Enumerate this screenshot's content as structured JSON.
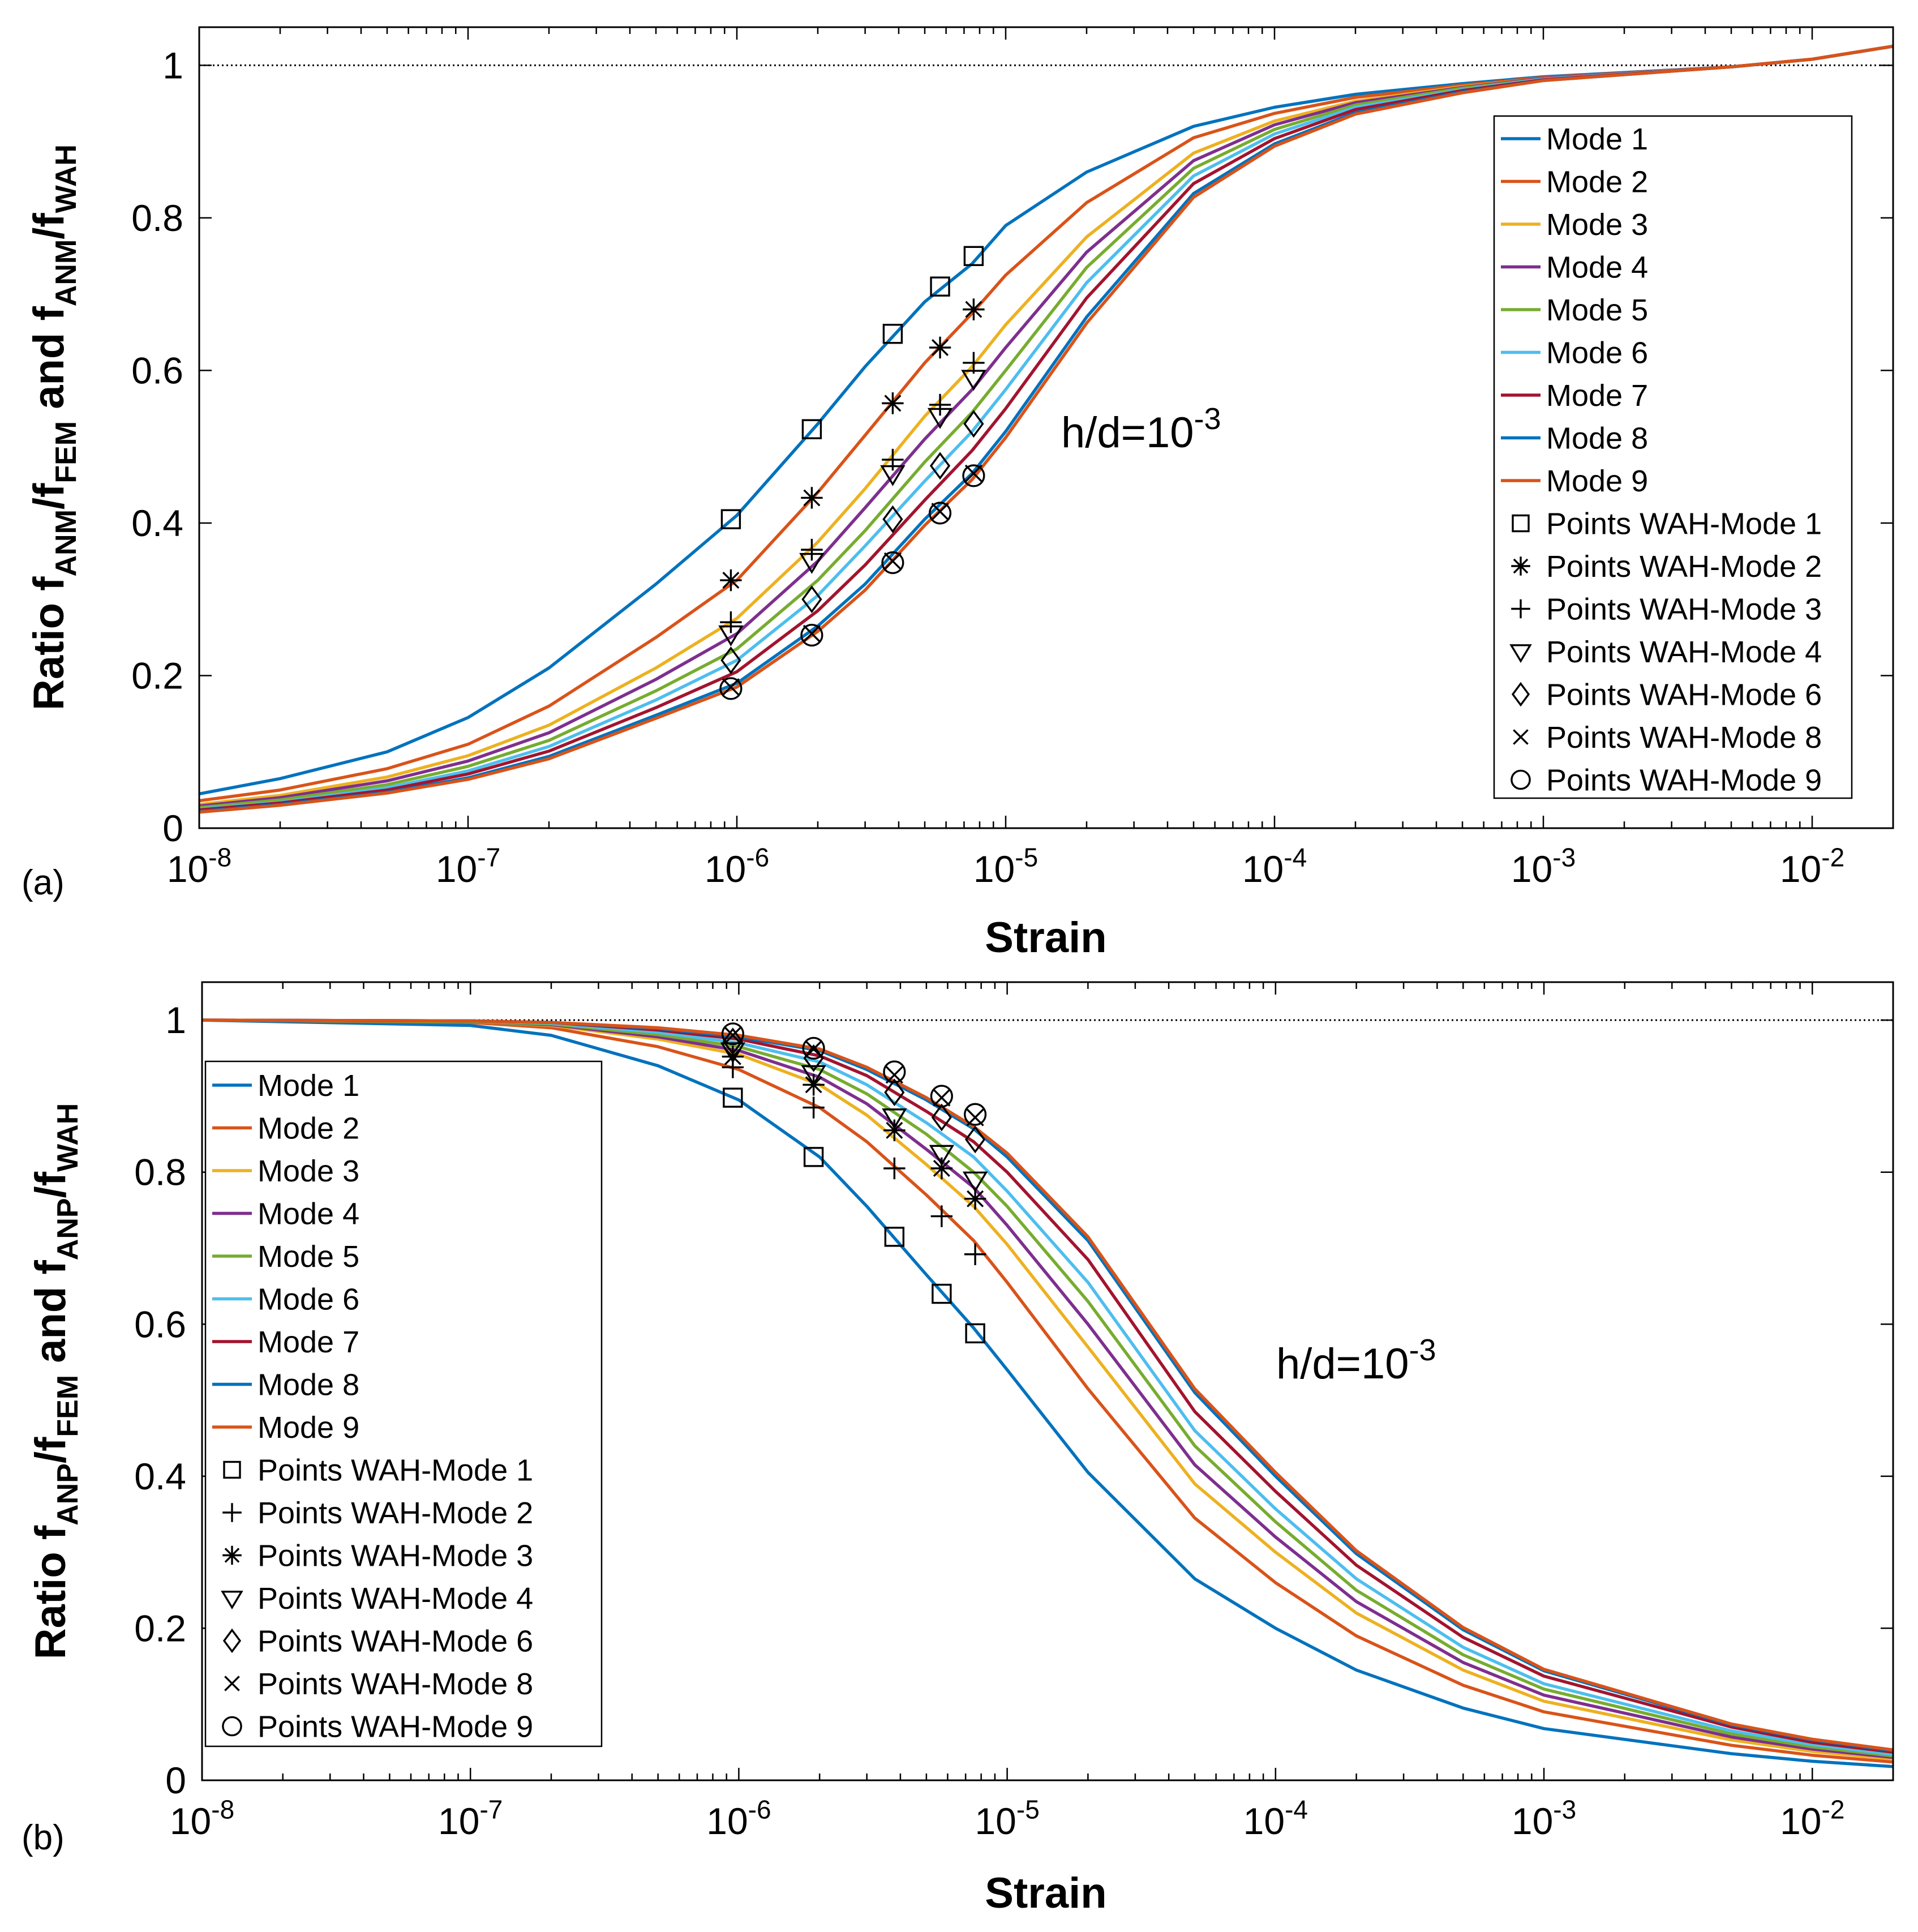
{
  "chart_data": [
    {
      "type": "line",
      "panel_label": "(a)",
      "xlabel": "Strain",
      "ylabel": {
        "base": "Ratio f",
        "s1": "ANM",
        "mid1": "/f",
        "s2": "FEM",
        "mid2": " and f",
        "s3": "ANM",
        "mid3": "/f",
        "s4": "WAH"
      },
      "xscale": "log",
      "xlim": [
        1e-08,
        0.02
      ],
      "ylim": [
        0,
        1.05
      ],
      "x_ticks": [
        {
          "base": "10",
          "exp": "-8"
        },
        {
          "base": "10",
          "exp": "-7"
        },
        {
          "base": "10",
          "exp": "-6"
        },
        {
          "base": "10",
          "exp": "-5"
        },
        {
          "base": "10",
          "exp": "-4"
        },
        {
          "base": "10",
          "exp": "-3"
        },
        {
          "base": "10",
          "exp": "-2"
        }
      ],
      "y_ticks": [
        "0",
        "0.2",
        "0.4",
        "0.6",
        "0.8",
        "1"
      ],
      "annotation": {
        "base": "h/d=10",
        "exp": "-3"
      },
      "reference_line": 1,
      "x": [
        1e-08,
        2e-08,
        5e-08,
        1e-07,
        2e-07,
        5e-07,
        1e-06,
        2e-06,
        3e-06,
        5e-06,
        7.5e-06,
        1e-05,
        2e-05,
        5e-05,
        0.0001,
        0.0002,
        0.0005,
        0.001,
        0.005,
        0.01,
        0.02
      ],
      "series": [
        {
          "name": "Mode 1",
          "color": "#0072BD",
          "values": [
            0.045,
            0.065,
            0.1,
            0.145,
            0.21,
            0.32,
            0.41,
            0.53,
            0.605,
            0.69,
            0.74,
            0.79,
            0.86,
            0.92,
            0.945,
            0.962,
            0.976,
            0.985,
            0.998,
            1.008,
            1.025
          ]
        },
        {
          "name": "Mode 2",
          "color": "#D95319",
          "values": [
            0.036,
            0.05,
            0.078,
            0.11,
            0.16,
            0.25,
            0.325,
            0.44,
            0.515,
            0.61,
            0.675,
            0.725,
            0.82,
            0.905,
            0.937,
            0.958,
            0.974,
            0.984,
            0.998,
            1.008,
            1.025
          ]
        },
        {
          "name": "Mode 3",
          "color": "#EDB120",
          "values": [
            0.031,
            0.043,
            0.067,
            0.095,
            0.135,
            0.21,
            0.275,
            0.375,
            0.445,
            0.54,
            0.605,
            0.66,
            0.775,
            0.885,
            0.927,
            0.953,
            0.972,
            0.983,
            0.998,
            1.008,
            1.025
          ]
        },
        {
          "name": "Mode 4",
          "color": "#7E2F8E",
          "values": [
            0.029,
            0.04,
            0.062,
            0.088,
            0.125,
            0.195,
            0.255,
            0.35,
            0.42,
            0.51,
            0.575,
            0.63,
            0.755,
            0.875,
            0.922,
            0.951,
            0.971,
            0.983,
            0.998,
            1.008,
            1.025
          ]
        },
        {
          "name": "Mode 5",
          "color": "#77AC30",
          "values": [
            0.027,
            0.037,
            0.057,
            0.081,
            0.115,
            0.18,
            0.235,
            0.325,
            0.39,
            0.48,
            0.545,
            0.6,
            0.735,
            0.865,
            0.916,
            0.948,
            0.97,
            0.982,
            0.998,
            1.008,
            1.025
          ]
        },
        {
          "name": "Mode 6",
          "color": "#4DBEEE",
          "values": [
            0.025,
            0.034,
            0.053,
            0.075,
            0.107,
            0.168,
            0.22,
            0.305,
            0.37,
            0.455,
            0.52,
            0.575,
            0.715,
            0.855,
            0.91,
            0.945,
            0.968,
            0.982,
            0.998,
            1.008,
            1.025
          ]
        },
        {
          "name": "Mode 7",
          "color": "#A2142F",
          "values": [
            0.024,
            0.033,
            0.05,
            0.071,
            0.101,
            0.158,
            0.205,
            0.285,
            0.345,
            0.43,
            0.495,
            0.55,
            0.695,
            0.845,
            0.904,
            0.942,
            0.967,
            0.981,
            0.998,
            1.008,
            1.025
          ]
        },
        {
          "name": "Mode 8",
          "color": "#0072BD",
          "values": [
            0.022,
            0.031,
            0.047,
            0.066,
            0.094,
            0.148,
            0.19,
            0.265,
            0.32,
            0.405,
            0.465,
            0.52,
            0.67,
            0.832,
            0.897,
            0.938,
            0.965,
            0.98,
            0.998,
            1.008,
            1.025
          ]
        },
        {
          "name": "Mode 9",
          "color": "#D95319",
          "values": [
            0.021,
            0.03,
            0.046,
            0.064,
            0.091,
            0.144,
            0.185,
            0.258,
            0.312,
            0.397,
            0.457,
            0.512,
            0.662,
            0.827,
            0.894,
            0.936,
            0.964,
            0.98,
            0.998,
            1.008,
            1.025
          ]
        }
      ],
      "markers_x": [
        9.5e-07,
        1.9e-06,
        3.8e-06,
        5.7e-06,
        7.6e-06
      ],
      "marker_series": [
        {
          "name": "Points WAH-Mode 1",
          "marker": "square",
          "values": [
            0.405,
            0.523,
            0.648,
            0.71,
            0.75
          ]
        },
        {
          "name": "Points WAH-Mode 2",
          "marker": "asterisk",
          "values": [
            0.325,
            0.433,
            0.557,
            0.63,
            0.68
          ]
        },
        {
          "name": "Points WAH-Mode 3",
          "marker": "plus",
          "values": [
            0.27,
            0.365,
            0.483,
            0.555,
            0.61
          ]
        },
        {
          "name": "Points WAH-Mode 4",
          "marker": "triangle-down",
          "values": [
            0.255,
            0.35,
            0.465,
            0.54,
            0.59
          ]
        },
        {
          "name": "Points WAH-Mode 6",
          "marker": "diamond",
          "values": [
            0.22,
            0.3,
            0.405,
            0.475,
            0.53
          ]
        },
        {
          "name": "Points WAH-Mode 8",
          "marker": "x",
          "values": [
            0.185,
            0.255,
            0.35,
            0.415,
            0.465
          ]
        },
        {
          "name": "Points WAH-Mode 9",
          "marker": "circle",
          "values": [
            0.183,
            0.253,
            0.348,
            0.413,
            0.462
          ]
        }
      ],
      "legend_location": "right"
    },
    {
      "type": "line",
      "panel_label": "(b)",
      "xlabel": "Strain",
      "ylabel": {
        "base": "Ratio f",
        "s1": "ANP",
        "mid1": "/f",
        "s2": "FEM",
        "mid2": " and f",
        "s3": "ANP",
        "mid3": "/f",
        "s4": "WAH"
      },
      "xscale": "log",
      "xlim": [
        1e-08,
        0.02
      ],
      "ylim": [
        0,
        1.05
      ],
      "x_ticks": [
        {
          "base": "10",
          "exp": "-8"
        },
        {
          "base": "10",
          "exp": "-7"
        },
        {
          "base": "10",
          "exp": "-6"
        },
        {
          "base": "10",
          "exp": "-5"
        },
        {
          "base": "10",
          "exp": "-4"
        },
        {
          "base": "10",
          "exp": "-3"
        },
        {
          "base": "10",
          "exp": "-2"
        }
      ],
      "y_ticks": [
        "0",
        "0.2",
        "0.4",
        "0.6",
        "0.8",
        "1"
      ],
      "annotation": {
        "base": "h/d=10",
        "exp": "-3"
      },
      "reference_line": 1,
      "x": [
        1e-08,
        1e-07,
        2e-07,
        5e-07,
        1e-06,
        2e-06,
        3e-06,
        5e-06,
        7.5e-06,
        1e-05,
        2e-05,
        5e-05,
        0.0001,
        0.0002,
        0.0005,
        0.001,
        0.005,
        0.01,
        0.02
      ],
      "series": [
        {
          "name": "Mode 1",
          "color": "#0072BD",
          "values": [
            1.0,
            0.993,
            0.98,
            0.94,
            0.895,
            0.82,
            0.755,
            0.665,
            0.595,
            0.54,
            0.405,
            0.265,
            0.2,
            0.145,
            0.095,
            0.068,
            0.035,
            0.025,
            0.018
          ]
        },
        {
          "name": "Mode 2",
          "color": "#D95319",
          "values": [
            1.0,
            0.997,
            0.99,
            0.965,
            0.935,
            0.885,
            0.84,
            0.77,
            0.71,
            0.655,
            0.515,
            0.345,
            0.26,
            0.19,
            0.125,
            0.09,
            0.046,
            0.033,
            0.024
          ]
        },
        {
          "name": "Mode 3",
          "color": "#EDB120",
          "values": [
            1.0,
            0.998,
            0.993,
            0.975,
            0.955,
            0.915,
            0.875,
            0.81,
            0.755,
            0.705,
            0.57,
            0.39,
            0.3,
            0.22,
            0.145,
            0.104,
            0.053,
            0.038,
            0.028
          ]
        },
        {
          "name": "Mode 4",
          "color": "#7E2F8E",
          "values": [
            1.0,
            0.998,
            0.994,
            0.978,
            0.96,
            0.925,
            0.89,
            0.83,
            0.78,
            0.73,
            0.6,
            0.415,
            0.32,
            0.235,
            0.155,
            0.112,
            0.057,
            0.041,
            0.03
          ]
        },
        {
          "name": "Mode 5",
          "color": "#77AC30",
          "values": [
            1.0,
            0.998,
            0.995,
            0.981,
            0.965,
            0.935,
            0.903,
            0.85,
            0.8,
            0.755,
            0.63,
            0.44,
            0.34,
            0.25,
            0.165,
            0.12,
            0.061,
            0.044,
            0.032
          ]
        },
        {
          "name": "Mode 6",
          "color": "#4DBEEE",
          "values": [
            1.0,
            0.999,
            0.996,
            0.984,
            0.97,
            0.945,
            0.915,
            0.865,
            0.82,
            0.775,
            0.655,
            0.46,
            0.357,
            0.265,
            0.175,
            0.127,
            0.065,
            0.047,
            0.034
          ]
        },
        {
          "name": "Mode 7",
          "color": "#A2142F",
          "values": [
            1.0,
            0.999,
            0.997,
            0.987,
            0.975,
            0.953,
            0.927,
            0.88,
            0.84,
            0.8,
            0.685,
            0.485,
            0.38,
            0.283,
            0.188,
            0.137,
            0.07,
            0.05,
            0.037
          ]
        },
        {
          "name": "Mode 8",
          "color": "#0072BD",
          "values": [
            1.0,
            0.999,
            0.997,
            0.989,
            0.978,
            0.96,
            0.935,
            0.895,
            0.857,
            0.82,
            0.71,
            0.51,
            0.4,
            0.298,
            0.198,
            0.144,
            0.073,
            0.053,
            0.039
          ]
        },
        {
          "name": "Mode 9",
          "color": "#D95319",
          "values": [
            1.0,
            0.999,
            0.997,
            0.99,
            0.98,
            0.962,
            0.938,
            0.898,
            0.86,
            0.825,
            0.715,
            0.515,
            0.405,
            0.302,
            0.201,
            0.146,
            0.074,
            0.054,
            0.04
          ]
        }
      ],
      "markers_x": [
        9.5e-07,
        1.9e-06,
        3.8e-06,
        5.7e-06,
        7.6e-06
      ],
      "marker_series": [
        {
          "name": "Points WAH-Mode 1",
          "marker": "square",
          "values": [
            0.898,
            0.82,
            0.715,
            0.64,
            0.588
          ]
        },
        {
          "name": "Points WAH-Mode 2",
          "marker": "plus",
          "values": [
            0.938,
            0.885,
            0.805,
            0.742,
            0.692
          ]
        },
        {
          "name": "Points WAH-Mode 3",
          "marker": "asterisk",
          "values": [
            0.952,
            0.915,
            0.855,
            0.805,
            0.765
          ]
        },
        {
          "name": "Points WAH-Mode 4",
          "marker": "triangle-down",
          "values": [
            0.96,
            0.93,
            0.873,
            0.825,
            0.79
          ]
        },
        {
          "name": "Points WAH-Mode 6",
          "marker": "diamond",
          "values": [
            0.972,
            0.95,
            0.905,
            0.872,
            0.843
          ]
        },
        {
          "name": "Points WAH-Mode 8",
          "marker": "x",
          "values": [
            0.98,
            0.962,
            0.928,
            0.898,
            0.872
          ]
        },
        {
          "name": "Points WAH-Mode 9",
          "marker": "circle",
          "values": [
            0.982,
            0.963,
            0.932,
            0.9,
            0.876
          ]
        }
      ],
      "legend_location": "left"
    }
  ]
}
